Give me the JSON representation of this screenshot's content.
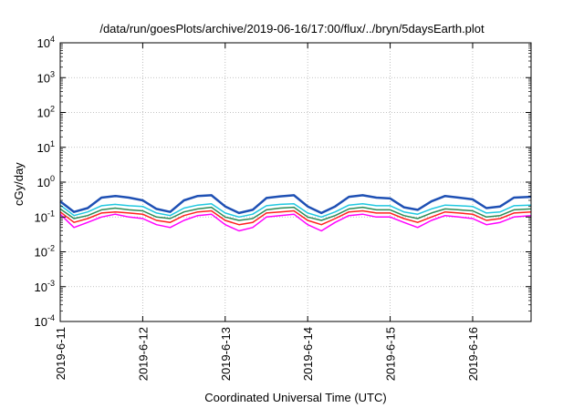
{
  "chart_data": {
    "type": "line",
    "title": "/data/run/goesPlots/archive/2019-06-16/17:00/flux/../bryn/5daysEarth.plot",
    "xlabel": "Coordinated Universal Time (UTC)",
    "ylabel": "cGy/day",
    "yscale": "log",
    "ylim": [
      0.0001,
      10000
    ],
    "yticks": [
      {
        "value": 0.0001,
        "base": "10",
        "exp": "-4"
      },
      {
        "value": 0.001,
        "base": "10",
        "exp": "-3"
      },
      {
        "value": 0.01,
        "base": "10",
        "exp": "-2"
      },
      {
        "value": 0.1,
        "base": "10",
        "exp": "-1"
      },
      {
        "value": 1,
        "base": "10",
        "exp": "0"
      },
      {
        "value": 10,
        "base": "10",
        "exp": "1"
      },
      {
        "value": 100,
        "base": "10",
        "exp": "2"
      },
      {
        "value": 1000,
        "base": "10",
        "exp": "3"
      },
      {
        "value": 10000,
        "base": "10",
        "exp": "4"
      }
    ],
    "xlim": [
      "2019-06-11 00:00",
      "2019-06-16 17:00"
    ],
    "xticks": [
      "2019-6-11",
      "2019-6-12",
      "2019-6-13",
      "2019-6-14",
      "2019-6-15",
      "2019-6-16"
    ],
    "grid": true,
    "series": [
      {
        "color": "#ff00ff",
        "width": 1.5,
        "x": [
          "2019-06-11 00:00",
          "2019-06-11 04:00",
          "2019-06-11 08:00",
          "2019-06-11 12:00",
          "2019-06-11 16:00",
          "2019-06-11 20:00",
          "2019-06-12 00:00",
          "2019-06-12 04:00",
          "2019-06-12 08:00",
          "2019-06-12 12:00",
          "2019-06-12 16:00",
          "2019-06-12 20:00",
          "2019-06-13 00:00",
          "2019-06-13 04:00",
          "2019-06-13 08:00",
          "2019-06-13 12:00",
          "2019-06-13 16:00",
          "2019-06-13 20:00",
          "2019-06-14 00:00",
          "2019-06-14 04:00",
          "2019-06-14 08:00",
          "2019-06-14 12:00",
          "2019-06-14 16:00",
          "2019-06-14 20:00",
          "2019-06-15 00:00",
          "2019-06-15 04:00",
          "2019-06-15 08:00",
          "2019-06-15 12:00",
          "2019-06-15 16:00",
          "2019-06-15 20:00",
          "2019-06-16 00:00",
          "2019-06-16 04:00",
          "2019-06-16 08:00",
          "2019-06-16 12:00",
          "2019-06-16 17:00"
        ],
        "y": [
          0.12,
          0.05,
          0.07,
          0.1,
          0.12,
          0.1,
          0.09,
          0.06,
          0.05,
          0.08,
          0.11,
          0.12,
          0.06,
          0.04,
          0.05,
          0.1,
          0.11,
          0.12,
          0.06,
          0.04,
          0.07,
          0.11,
          0.12,
          0.1,
          0.1,
          0.07,
          0.05,
          0.08,
          0.11,
          0.1,
          0.09,
          0.06,
          0.07,
          0.1,
          0.11
        ]
      },
      {
        "color": "#ff2020",
        "width": 1.5,
        "x": [
          "2019-06-11 00:00",
          "2019-06-11 04:00",
          "2019-06-11 08:00",
          "2019-06-11 12:00",
          "2019-06-11 16:00",
          "2019-06-11 20:00",
          "2019-06-12 00:00",
          "2019-06-12 04:00",
          "2019-06-12 08:00",
          "2019-06-12 12:00",
          "2019-06-12 16:00",
          "2019-06-12 20:00",
          "2019-06-13 00:00",
          "2019-06-13 04:00",
          "2019-06-13 08:00",
          "2019-06-13 12:00",
          "2019-06-13 16:00",
          "2019-06-13 20:00",
          "2019-06-14 00:00",
          "2019-06-14 04:00",
          "2019-06-14 08:00",
          "2019-06-14 12:00",
          "2019-06-14 16:00",
          "2019-06-14 20:00",
          "2019-06-15 00:00",
          "2019-06-15 04:00",
          "2019-06-15 08:00",
          "2019-06-15 12:00",
          "2019-06-15 16:00",
          "2019-06-15 20:00",
          "2019-06-16 00:00",
          "2019-06-16 04:00",
          "2019-06-16 08:00",
          "2019-06-16 12:00",
          "2019-06-16 17:00"
        ],
        "y": [
          0.14,
          0.07,
          0.09,
          0.13,
          0.14,
          0.13,
          0.12,
          0.08,
          0.07,
          0.11,
          0.14,
          0.15,
          0.08,
          0.06,
          0.07,
          0.13,
          0.14,
          0.15,
          0.08,
          0.06,
          0.09,
          0.14,
          0.15,
          0.13,
          0.13,
          0.09,
          0.07,
          0.1,
          0.14,
          0.13,
          0.12,
          0.08,
          0.09,
          0.13,
          0.14
        ]
      },
      {
        "color": "#2e8b57",
        "width": 1.5,
        "x": [
          "2019-06-11 00:00",
          "2019-06-11 04:00",
          "2019-06-11 08:00",
          "2019-06-11 12:00",
          "2019-06-11 16:00",
          "2019-06-11 20:00",
          "2019-06-12 00:00",
          "2019-06-12 04:00",
          "2019-06-12 08:00",
          "2019-06-12 12:00",
          "2019-06-12 16:00",
          "2019-06-12 20:00",
          "2019-06-13 00:00",
          "2019-06-13 04:00",
          "2019-06-13 08:00",
          "2019-06-13 12:00",
          "2019-06-13 16:00",
          "2019-06-13 20:00",
          "2019-06-14 00:00",
          "2019-06-14 04:00",
          "2019-06-14 08:00",
          "2019-06-14 12:00",
          "2019-06-14 16:00",
          "2019-06-14 20:00",
          "2019-06-15 00:00",
          "2019-06-15 04:00",
          "2019-06-15 08:00",
          "2019-06-15 12:00",
          "2019-06-15 16:00",
          "2019-06-15 20:00",
          "2019-06-16 00:00",
          "2019-06-16 04:00",
          "2019-06-16 08:00",
          "2019-06-16 12:00",
          "2019-06-16 17:00"
        ],
        "y": [
          0.17,
          0.09,
          0.11,
          0.16,
          0.18,
          0.16,
          0.15,
          0.1,
          0.09,
          0.14,
          0.17,
          0.19,
          0.1,
          0.08,
          0.09,
          0.16,
          0.18,
          0.19,
          0.1,
          0.08,
          0.11,
          0.17,
          0.19,
          0.16,
          0.16,
          0.11,
          0.09,
          0.13,
          0.17,
          0.16,
          0.15,
          0.1,
          0.11,
          0.16,
          0.17
        ]
      },
      {
        "color": "#20c8e0",
        "width": 1.5,
        "x": [
          "2019-06-11 00:00",
          "2019-06-11 04:00",
          "2019-06-11 08:00",
          "2019-06-11 12:00",
          "2019-06-11 16:00",
          "2019-06-11 20:00",
          "2019-06-12 00:00",
          "2019-06-12 04:00",
          "2019-06-12 08:00",
          "2019-06-12 12:00",
          "2019-06-12 16:00",
          "2019-06-12 20:00",
          "2019-06-13 00:00",
          "2019-06-13 04:00",
          "2019-06-13 08:00",
          "2019-06-13 12:00",
          "2019-06-13 16:00",
          "2019-06-13 20:00",
          "2019-06-14 00:00",
          "2019-06-14 04:00",
          "2019-06-14 08:00",
          "2019-06-14 12:00",
          "2019-06-14 16:00",
          "2019-06-14 20:00",
          "2019-06-15 00:00",
          "2019-06-15 04:00",
          "2019-06-15 08:00",
          "2019-06-15 12:00",
          "2019-06-15 16:00",
          "2019-06-15 20:00",
          "2019-06-16 00:00",
          "2019-06-16 04:00",
          "2019-06-16 08:00",
          "2019-06-16 12:00",
          "2019-06-16 17:00"
        ],
        "y": [
          0.22,
          0.11,
          0.14,
          0.21,
          0.23,
          0.21,
          0.2,
          0.13,
          0.11,
          0.18,
          0.22,
          0.24,
          0.13,
          0.1,
          0.12,
          0.21,
          0.23,
          0.24,
          0.13,
          0.1,
          0.14,
          0.22,
          0.24,
          0.21,
          0.21,
          0.14,
          0.12,
          0.17,
          0.22,
          0.21,
          0.2,
          0.13,
          0.14,
          0.21,
          0.22
        ]
      },
      {
        "color": "#1e50b4",
        "width": 2.5,
        "x": [
          "2019-06-11 00:00",
          "2019-06-11 04:00",
          "2019-06-11 08:00",
          "2019-06-11 12:00",
          "2019-06-11 16:00",
          "2019-06-11 20:00",
          "2019-06-12 00:00",
          "2019-06-12 04:00",
          "2019-06-12 08:00",
          "2019-06-12 12:00",
          "2019-06-12 16:00",
          "2019-06-12 20:00",
          "2019-06-13 00:00",
          "2019-06-13 04:00",
          "2019-06-13 08:00",
          "2019-06-13 12:00",
          "2019-06-13 16:00",
          "2019-06-13 20:00",
          "2019-06-14 00:00",
          "2019-06-14 04:00",
          "2019-06-14 08:00",
          "2019-06-14 12:00",
          "2019-06-14 16:00",
          "2019-06-14 20:00",
          "2019-06-15 00:00",
          "2019-06-15 04:00",
          "2019-06-15 08:00",
          "2019-06-15 12:00",
          "2019-06-15 16:00",
          "2019-06-15 20:00",
          "2019-06-16 00:00",
          "2019-06-16 04:00",
          "2019-06-16 08:00",
          "2019-06-16 12:00",
          "2019-06-16 17:00"
        ],
        "y": [
          0.28,
          0.14,
          0.18,
          0.36,
          0.4,
          0.36,
          0.3,
          0.17,
          0.14,
          0.3,
          0.4,
          0.42,
          0.2,
          0.13,
          0.16,
          0.35,
          0.39,
          0.42,
          0.2,
          0.13,
          0.2,
          0.38,
          0.42,
          0.36,
          0.34,
          0.19,
          0.16,
          0.28,
          0.4,
          0.36,
          0.32,
          0.18,
          0.2,
          0.36,
          0.38
        ]
      }
    ]
  }
}
